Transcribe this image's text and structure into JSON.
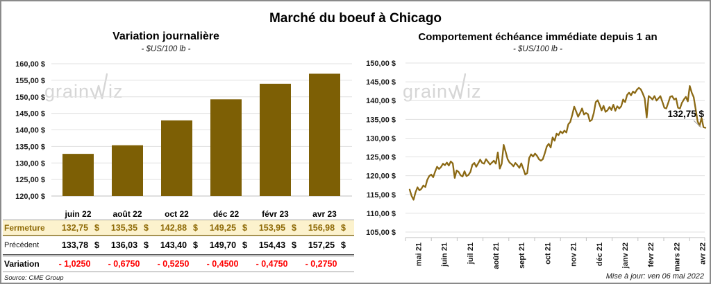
{
  "page": {
    "title": "Marché du boeuf à Chicago",
    "source": "Source: CME Group",
    "updated": "Mise à jour: ven 06 mai 2022"
  },
  "watermark": {
    "part1": "grain",
    "part2": "iz"
  },
  "colors": {
    "accent_bar": "#7d5f05",
    "accent_line": "#8b6914",
    "fermeture_bg": "#fcf2cd",
    "fermeture_text": "#8f6b08",
    "negative": "#fe0000",
    "grid": "#e0e0e0",
    "axis": "#bfbfbf",
    "tick_text": "#1a1a1a",
    "watermark": "#d6d6d6",
    "frame_border": "#8a8a8a"
  },
  "chart_data": [
    {
      "type": "bar",
      "title": "Variation journalière",
      "subtitle": "- $US/100 lb -",
      "categories": [
        "juin 22",
        "août 22",
        "oct 22",
        "déc 22",
        "févr 23",
        "avr 23"
      ],
      "values": [
        132.75,
        135.35,
        142.88,
        149.25,
        153.95,
        156.98
      ],
      "xlabel": "",
      "ylabel": "",
      "ylim": [
        120,
        160
      ],
      "ytick_step": 5,
      "grid": true,
      "tick_suffix": " $"
    },
    {
      "type": "line",
      "title": "Comportement échéance immédiate depuis 1 an",
      "subtitle": "- $US/100 lb -",
      "x_labels": [
        "mai 21",
        "juin 21",
        "juil 21",
        "août 21",
        "sept 21",
        "oct 21",
        "nov 21",
        "déc 21",
        "janv 22",
        "févr 22",
        "mars 22",
        "avr 22"
      ],
      "values": [
        116.3,
        114.6,
        113.6,
        115.6,
        116.9,
        116.1,
        116.5,
        117.4,
        117.0,
        118.9,
        119.9,
        120.3,
        119.6,
        121.1,
        122.4,
        121.8,
        122.3,
        123.2,
        122.8,
        123.5,
        122.7,
        123.8,
        123.3,
        119.4,
        121.4,
        121.0,
        120.1,
        119.8,
        121.2,
        119.9,
        120.2,
        121.0,
        122.9,
        123.4,
        122.4,
        123.3,
        124.3,
        123.4,
        123.2,
        124.4,
        123.7,
        123.0,
        123.5,
        124.0,
        123.2,
        126.2,
        121.9,
        123.2,
        128.2,
        126.4,
        124.4,
        123.5,
        123.1,
        122.5,
        123.4,
        122.8,
        122.1,
        123.3,
        121.9,
        120.3,
        120.7,
        124.7,
        125.7,
        125.1,
        125.9,
        125.3,
        124.4,
        124.0,
        124.4,
        126.0,
        127.8,
        128.5,
        127.5,
        130.2,
        129.3,
        131.2,
        130.8,
        131.8,
        131.3,
        132.0,
        131.5,
        133.7,
        134.3,
        136.2,
        138.4,
        137.1,
        135.7,
        136.7,
        137.9,
        136.3,
        136.7,
        136.4,
        134.5,
        134.9,
        136.7,
        139.6,
        140.1,
        138.8,
        137.4,
        138.6,
        137.0,
        137.4,
        138.3,
        137.5,
        138.9,
        137.3,
        138.5,
        137.9,
        138.5,
        140.3,
        139.6,
        141.5,
        142.1,
        141.4,
        142.4,
        142.0,
        142.9,
        143.4,
        143.0,
        141.9,
        140.6,
        135.5,
        141.2,
        140.8,
        140.3,
        141.2,
        140.0,
        140.6,
        141.2,
        139.7,
        138.1,
        137.9,
        139.4,
        141.0,
        141.2,
        140.3,
        140.6,
        138.1,
        137.9,
        139.4,
        140.3,
        141.0,
        139.8,
        143.9,
        142.1,
        140.9,
        137.7,
        134.5,
        133.3,
        135.4,
        132.9,
        132.75
      ],
      "xlabel": "",
      "ylabel": "",
      "ylim": [
        105,
        150
      ],
      "ytick_step": 5,
      "grid": true,
      "tick_suffix": " $",
      "end_label": "132,75 $"
    }
  ],
  "table": {
    "columns": [
      "juin 22",
      "août 22",
      "oct 22",
      "déc 22",
      "févr 23",
      "avr 23"
    ],
    "rows": [
      {
        "id": "fermeture",
        "label": "Fermeture",
        "unit": "$",
        "values": [
          "132,75",
          "135,35",
          "142,88",
          "149,25",
          "153,95",
          "156,98"
        ]
      },
      {
        "id": "precedent",
        "label": "Précédent",
        "unit": "$",
        "values": [
          "133,78",
          "136,03",
          "143,40",
          "149,70",
          "154,43",
          "157,25"
        ]
      },
      {
        "id": "variation",
        "label": "Variation",
        "unit": "",
        "values": [
          "- 1,0250",
          "- 0,6750",
          "- 0,5250",
          "- 0,4500",
          "- 0,4750",
          "- 0,2750"
        ]
      }
    ]
  }
}
